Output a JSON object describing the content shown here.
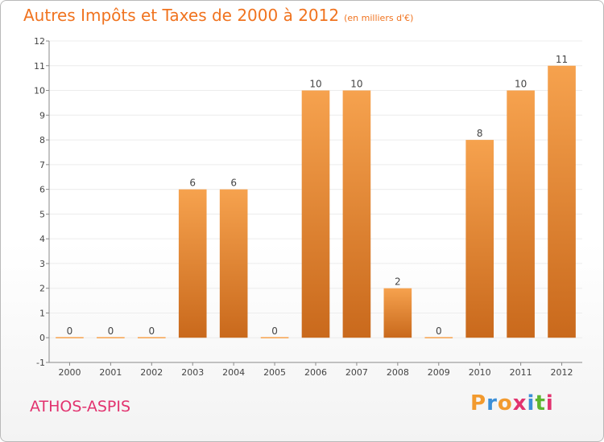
{
  "header": {
    "title": "Autres Impôts et Taxes de 2000 à 2012",
    "subtitle": "(en milliers d'€)"
  },
  "footer": {
    "city": "ATHOS-ASPIS",
    "brand": {
      "letters": [
        "P",
        "r",
        "o",
        "x",
        "i",
        "t",
        "i"
      ],
      "colors": [
        "#f29a2e",
        "#3b8fd8",
        "#f29a2e",
        "#e2336f",
        "#3b8fd8",
        "#5cb531",
        "#e2336f"
      ]
    }
  },
  "colors": {
    "bar_light": "#f6a24e",
    "bar_dark": "#c9691c",
    "axis": "#8a8a8a",
    "grid": "#ececec"
  },
  "chart_data": {
    "type": "bar",
    "title": "Autres Impôts et Taxes de 2000 à 2012",
    "subtitle": "(en milliers d'€)",
    "xlabel": "",
    "ylabel": "",
    "categories": [
      "2000",
      "2001",
      "2002",
      "2003",
      "2004",
      "2005",
      "2006",
      "2007",
      "2008",
      "2009",
      "2010",
      "2011",
      "2012"
    ],
    "values": [
      0,
      0,
      0,
      6,
      6,
      0,
      10,
      10,
      2,
      0,
      8,
      10,
      11
    ],
    "data_labels": [
      "0",
      "0",
      "0",
      "6",
      "6",
      "0",
      "10",
      "10",
      "2",
      "0",
      "8",
      "10",
      "11"
    ],
    "ylim": [
      -1,
      12
    ],
    "yticks": [
      -1,
      0,
      1,
      2,
      3,
      4,
      5,
      6,
      7,
      8,
      9,
      10,
      11,
      12
    ],
    "ytick_labels": [
      "-1",
      "0",
      "1",
      "2",
      "3",
      "4",
      "5",
      "6",
      "7",
      "8",
      "9",
      "10",
      "11",
      "12"
    ],
    "grid": true,
    "legend": "none"
  }
}
